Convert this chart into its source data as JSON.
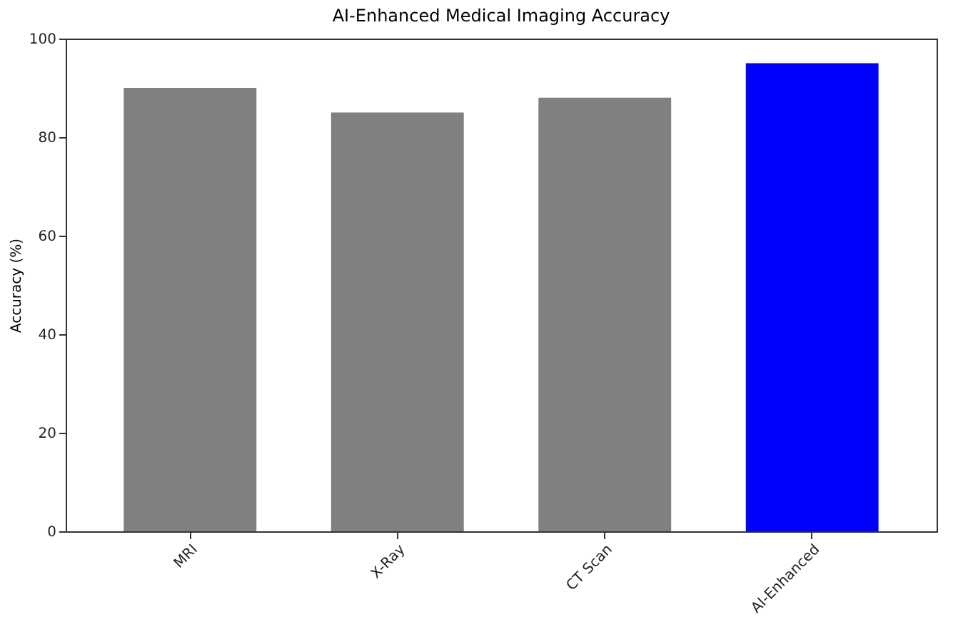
{
  "chart_data": {
    "type": "bar",
    "title": "AI-Enhanced Medical Imaging Accuracy",
    "ylabel": "Accuracy (%)",
    "categories": [
      "MRI",
      "X-Ray",
      "CT Scan",
      "AI-Enhanced"
    ],
    "values": [
      90,
      85,
      88,
      95
    ],
    "colors": [
      "#808080",
      "#808080",
      "#808080",
      "#0000ff"
    ],
    "ylim": [
      0,
      100
    ],
    "yticks": [
      0,
      20,
      40,
      60,
      80,
      100
    ],
    "grid": false
  }
}
